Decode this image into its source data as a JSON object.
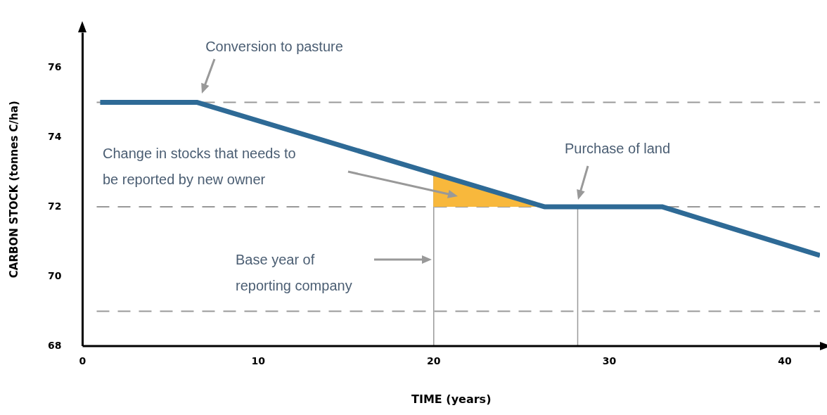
{
  "chart_data": {
    "type": "line",
    "xlabel": "TIME (years)",
    "ylabel": "CARBON STOCK (tonnes C/ha)",
    "xlim": [
      0,
      42
    ],
    "ylim": [
      68,
      77
    ],
    "xticks": [
      0,
      10,
      20,
      30,
      40
    ],
    "yticks": [
      68,
      70,
      72,
      74,
      76
    ],
    "series": [
      {
        "color": "#2e6a96",
        "x": [
          1,
          6.5,
          26.3,
          33,
          42
        ],
        "values": [
          75,
          75,
          72,
          72,
          70.6
        ]
      },
      {
        "type": "area",
        "color": "#f8b83c",
        "x": [
          20,
          20,
          26.3
        ],
        "values": [
          72,
          72.9,
          72
        ]
      }
    ],
    "ref_lines": [
      {
        "axis": "y",
        "value": 75,
        "color": "#999999",
        "line_style": "dashed"
      },
      {
        "axis": "y",
        "value": 72,
        "color": "#999999",
        "line_style": "dashed"
      },
      {
        "axis": "y",
        "value": 69,
        "color": "#999999",
        "line_style": "dashed"
      },
      {
        "axis": "x",
        "value": 20,
        "color": "#999999",
        "line_style": "solid"
      },
      {
        "axis": "x",
        "value": 28.2,
        "color": "#999999",
        "line_style": "solid"
      }
    ],
    "annotations": [
      "Conversion to pasture",
      "Change in stocks that needs to\nbe reported by new owner",
      "Purchase of land",
      "Base year of\nreporting company"
    ],
    "legend": false,
    "grid": false,
    "marker": "none",
    "line_style": "solid"
  }
}
